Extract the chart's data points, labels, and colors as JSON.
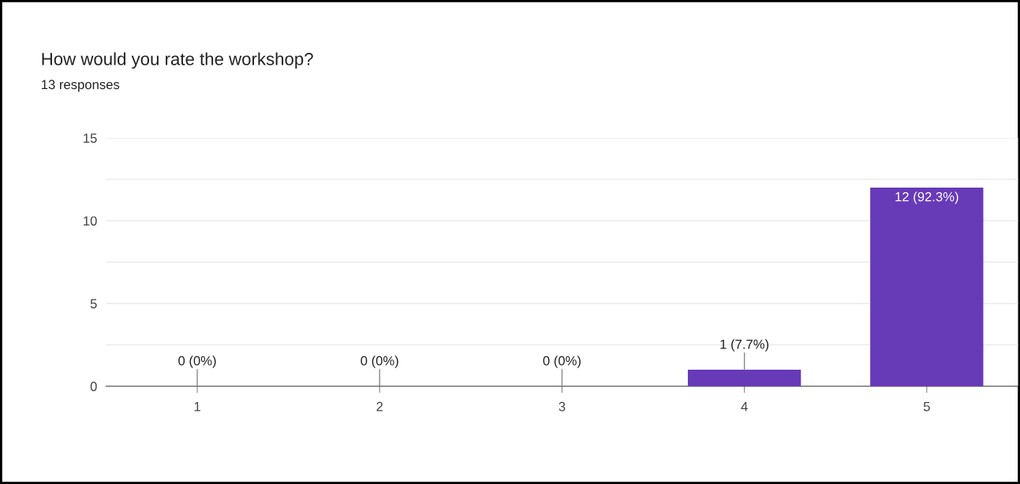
{
  "chart_data": {
    "type": "bar",
    "title": "How would you rate the workshop?",
    "subtitle": "13 responses",
    "categories": [
      "1",
      "2",
      "3",
      "4",
      "5"
    ],
    "values": [
      0,
      0,
      0,
      1,
      12
    ],
    "value_labels": [
      "0 (0%)",
      "0 (0%)",
      "0 (0%)",
      "1 (7.7%)",
      "12 (92.3%)"
    ],
    "color": "#673ab7",
    "ylim": [
      0,
      15
    ],
    "yticks": [
      0,
      {
        "value": 2.5,
        "label": null
      },
      5,
      {
        "value": 7.5,
        "label": null
      },
      10,
      {
        "value": 12.5,
        "label": null
      },
      15
    ],
    "grid": "y"
  }
}
